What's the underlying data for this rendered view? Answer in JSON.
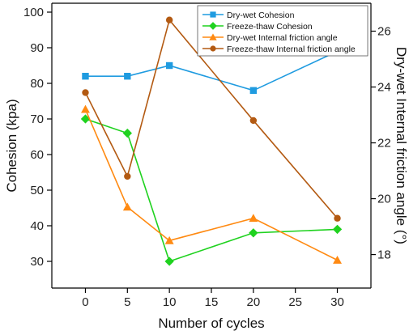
{
  "chart_data": {
    "type": "line",
    "x": [
      0,
      5,
      10,
      20,
      30
    ],
    "xlabel": "Number of cycles",
    "ylabel_left": "Cohesion (kpa)",
    "ylabel_right": "Dry-wet Internal friction angle (°)",
    "xlim": [
      -4,
      34
    ],
    "xticks": [
      0,
      5,
      10,
      15,
      20,
      25,
      30
    ],
    "ylim_left": [
      22.5,
      102.5
    ],
    "yticks_left": [
      30,
      40,
      50,
      60,
      70,
      80,
      90,
      100
    ],
    "ylim_right": [
      16.8,
      27.0
    ],
    "yticks_right": [
      18,
      20,
      22,
      24,
      26
    ],
    "grid": false,
    "legend_position": "top-right",
    "series": [
      {
        "name": "Dry-wet Cohesion",
        "axis": "left",
        "marker": "square",
        "color": "#1f9be0",
        "values": [
          82,
          82,
          85,
          78,
          89
        ]
      },
      {
        "name": "Freeze-thaw Cohesion",
        "axis": "left",
        "marker": "diamond",
        "color": "#1fd21f",
        "values": [
          70,
          66,
          30,
          38,
          39
        ]
      },
      {
        "name": "Dry-wet Internal friction angle",
        "axis": "right",
        "marker": "triangle",
        "color": "#ff8a12",
        "values": [
          23.2,
          19.7,
          18.5,
          19.3,
          17.8
        ]
      },
      {
        "name": "Freeze-thaw Internal friction angle",
        "axis": "right",
        "marker": "circle",
        "color": "#b35a12",
        "values": [
          23.8,
          20.8,
          26.4,
          22.8,
          19.3
        ]
      }
    ]
  }
}
